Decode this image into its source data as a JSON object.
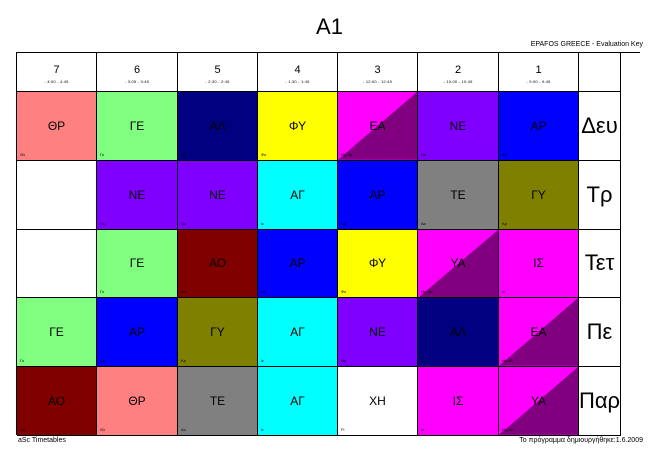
{
  "title": "A1",
  "key_label": "EPAFOS GREECE - Evaluation Key",
  "periods": [
    {
      "num": "7",
      "time": "- 4:00 - 4:45"
    },
    {
      "num": "6",
      "time": "- 3:05 - 3:45"
    },
    {
      "num": "5",
      "time": "- 2:30 - 2:45"
    },
    {
      "num": "4",
      "time": "- 1:30 - 1:45"
    },
    {
      "num": "3",
      "time": "- 12:00 - 12:45"
    },
    {
      "num": "2",
      "time": "- 10:00 - 10:45"
    },
    {
      "num": "1",
      "time": "- 9:00 - 9:45"
    }
  ],
  "days": [
    "Δευ",
    "Τρ",
    "Τετ",
    "Πε",
    "Παρ"
  ],
  "colors": {
    "salmon": "#ff8080",
    "light_green": "#80ff80",
    "navy": "#000080",
    "yellow": "#ffff00",
    "magenta": "#ff00ff",
    "dark_magenta": "#800080",
    "violet": "#8000ff",
    "blue": "#0000ff",
    "cyan": "#00ffff",
    "gray": "#808080",
    "olive": "#808000",
    "maroon": "#800000",
    "white": "#ffffff"
  },
  "rows": [
    [
      {
        "label": "ΘΡ",
        "code": "Θλ",
        "color": "#ff8080"
      },
      {
        "label": "ΓΕ",
        "code": "Γκ",
        "color": "#80ff80"
      },
      {
        "label": "ΑΛ",
        "code": "Αλ",
        "color": "#000080"
      },
      {
        "label": "ΦΥ",
        "code": "Φκ",
        "color": "#ffff00"
      },
      {
        "label": "ΕΑ",
        "code": "Ηρ,Αλ",
        "color": "#ff00ff",
        "color2": "#800080"
      },
      {
        "label": "ΝΕ",
        "code": "Νκ",
        "color": "#8000ff"
      },
      {
        "label": "ΑΡ",
        "code": "Αρ",
        "color": "#0000ff"
      }
    ],
    [
      {
        "label": "",
        "code": "",
        "color": "#ffffff"
      },
      {
        "label": "ΝΕ",
        "code": "Νκ",
        "color": "#8000ff"
      },
      {
        "label": "ΝΕ",
        "code": "Νκ",
        "color": "#8000ff"
      },
      {
        "label": "ΑΓ",
        "code": "Ιε",
        "color": "#00ffff"
      },
      {
        "label": "ΑΡ",
        "code": "Αρ",
        "color": "#0000ff"
      },
      {
        "label": "ΤΕ",
        "code": "Αο",
        "color": "#808080"
      },
      {
        "label": "ΓΥ",
        "code": "Κρ",
        "color": "#808000"
      }
    ],
    [
      {
        "label": "",
        "code": "",
        "color": "#ffffff"
      },
      {
        "label": "ΓΕ",
        "code": "Γκ",
        "color": "#80ff80"
      },
      {
        "label": "ΑΟ",
        "code": "Αο",
        "color": "#800000"
      },
      {
        "label": "ΑΡ",
        "code": "Αρ",
        "color": "#0000ff"
      },
      {
        "label": "ΦΥ",
        "code": "Φκ",
        "color": "#ffff00"
      },
      {
        "label": "ΥΑ",
        "code": "Ηρ,Απ",
        "color": "#ff00ff",
        "color2": "#800080"
      },
      {
        "label": "ΙΣ",
        "code": "Ιο",
        "color": "#ff00ff"
      }
    ],
    [
      {
        "label": "ΓΕ",
        "code": "Γκ",
        "color": "#80ff80"
      },
      {
        "label": "ΑΡ",
        "code": "Αρ",
        "color": "#0000ff"
      },
      {
        "label": "ΓΥ",
        "code": "Κρ",
        "color": "#808000"
      },
      {
        "label": "ΑΓ",
        "code": "Ιε",
        "color": "#00ffff"
      },
      {
        "label": "ΝΕ",
        "code": "Νκ",
        "color": "#8000ff"
      },
      {
        "label": "ΑΛ",
        "code": "Αλ",
        "color": "#000080"
      },
      {
        "label": "ΕΑ",
        "code": "Ηρ,Αλ",
        "color": "#ff00ff",
        "color2": "#800080"
      }
    ],
    [
      {
        "label": "ΑΟ",
        "code": "Αο",
        "color": "#800000"
      },
      {
        "label": "ΘΡ",
        "code": "Θλ",
        "color": "#ff8080"
      },
      {
        "label": "ΤΕ",
        "code": "Αο",
        "color": "#808080"
      },
      {
        "label": "ΑΓ",
        "code": "Ιε",
        "color": "#00ffff"
      },
      {
        "label": "ΧΗ",
        "code": "Fl",
        "color": "#ffffff"
      },
      {
        "label": "ΙΣ",
        "code": "Ιο",
        "color": "#ff00ff"
      },
      {
        "label": "ΥΑ",
        "code": "Ηρ,Απ",
        "color": "#ff00ff",
        "color2": "#800080"
      }
    ]
  ],
  "footer_left": "aSc Timetables",
  "footer_right": "Το πρόγραμμα δημιουργήθηκε:1.6.2009"
}
